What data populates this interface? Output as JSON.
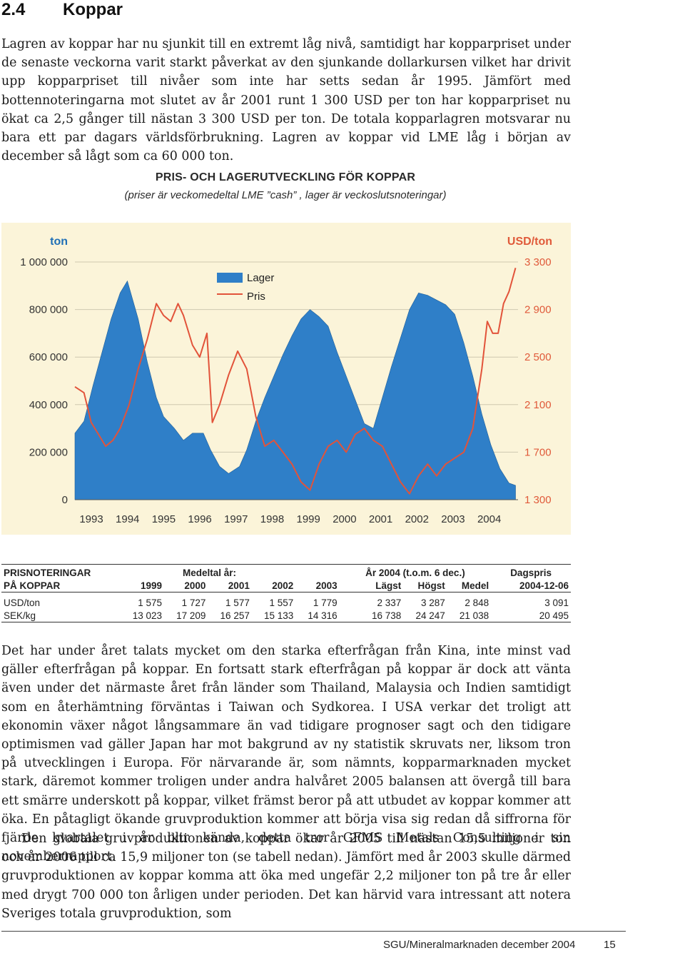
{
  "section": {
    "number": "2.4",
    "title": "Koppar"
  },
  "intro": "Lagren av koppar har nu sjunkit till en extremt låg nivå, samtidigt har kopparpriset under de senaste veckorna varit starkt påverkat av den sjunkande dollarkursen vilket har drivit upp kopparpriset till nivåer som inte har setts sedan år 1995. Jämfört med bottennoteringarna mot slutet av år 2001 runt 1 300 USD per ton har kopparpriset nu ökat ca 2,5 gånger till nästan 3 300 USD per ton. De totala kopparlagren motsvarar nu bara ett par dagars världsförbrukning. Lagren av koppar vid LME låg i början av december så lågt som ca 60 000 ton.",
  "chart_data": {
    "type": "area",
    "title": "PRIS- OCH LAGERUTVECKLING FÖR KOPPAR",
    "subtitle": "(priser är veckomedeltal LME ”cash” , lager är veckoslutsnoteringar)",
    "left_unit": "ton",
    "right_unit": "USD/ton",
    "left_ticks": [
      {
        "v": 1000000,
        "label": "1 000 000"
      },
      {
        "v": 800000,
        "label": "800 000"
      },
      {
        "v": 600000,
        "label": "600 000"
      },
      {
        "v": 400000,
        "label": "400 000"
      },
      {
        "v": 200000,
        "label": "200 000"
      },
      {
        "v": 0,
        "label": "0"
      }
    ],
    "right_ticks": [
      {
        "v": 3300,
        "label": "3 300"
      },
      {
        "v": 2900,
        "label": "2 900"
      },
      {
        "v": 2500,
        "label": "2 500"
      },
      {
        "v": 2100,
        "label": "2 100"
      },
      {
        "v": 1700,
        "label": "1 700"
      },
      {
        "v": 1300,
        "label": "1 300"
      }
    ],
    "left_range": [
      0,
      1000000
    ],
    "right_range": [
      1300,
      3300
    ],
    "x_range": [
      1992.75,
      2005.0
    ],
    "x_ticks": [
      "1993",
      "1994",
      "1995",
      "1996",
      "1997",
      "1998",
      "1999",
      "2000",
      "2001",
      "2002",
      "2003",
      "2004"
    ],
    "legend_position": "top-center",
    "series": [
      {
        "name": "Lager",
        "kind": "area",
        "color": "#2f7fc8",
        "x": [
          1992.75,
          1993.0,
          1993.25,
          1993.5,
          1993.75,
          1994.0,
          1994.2,
          1994.5,
          1994.75,
          1995.0,
          1995.2,
          1995.5,
          1995.75,
          1996.0,
          1996.3,
          1996.5,
          1996.75,
          1997.0,
          1997.3,
          1997.5,
          1997.75,
          1998.0,
          1998.25,
          1998.5,
          1998.75,
          1999.0,
          1999.25,
          1999.5,
          1999.75,
          2000.0,
          2000.25,
          2000.5,
          2000.75,
          2001.0,
          2001.25,
          2001.5,
          2001.75,
          2002.0,
          2002.25,
          2002.5,
          2002.75,
          2003.0,
          2003.25,
          2003.5,
          2003.75,
          2004.0,
          2004.25,
          2004.5,
          2004.75,
          2004.93
        ],
        "values": [
          280000,
          330000,
          480000,
          620000,
          760000,
          870000,
          920000,
          760000,
          580000,
          430000,
          350000,
          300000,
          250000,
          280000,
          280000,
          210000,
          140000,
          110000,
          140000,
          210000,
          330000,
          430000,
          520000,
          610000,
          690000,
          760000,
          800000,
          770000,
          730000,
          620000,
          520000,
          420000,
          320000,
          300000,
          430000,
          560000,
          680000,
          800000,
          870000,
          860000,
          840000,
          820000,
          780000,
          660000,
          520000,
          360000,
          230000,
          130000,
          70000,
          60000
        ]
      },
      {
        "name": "Pris",
        "kind": "line",
        "color": "#e2533a",
        "x": [
          1992.75,
          1993.0,
          1993.2,
          1993.4,
          1993.6,
          1993.8,
          1994.0,
          1994.25,
          1994.5,
          1994.75,
          1995.0,
          1995.2,
          1995.4,
          1995.6,
          1995.75,
          1996.0,
          1996.2,
          1996.4,
          1996.55,
          1996.75,
          1997.0,
          1997.25,
          1997.5,
          1997.75,
          1998.0,
          1998.25,
          1998.5,
          1998.75,
          1999.0,
          1999.25,
          1999.5,
          1999.75,
          2000.0,
          2000.25,
          2000.5,
          2000.75,
          2001.0,
          2001.25,
          2001.5,
          2001.75,
          2002.0,
          2002.25,
          2002.5,
          2002.75,
          2003.0,
          2003.25,
          2003.5,
          2003.75,
          2004.0,
          2004.15,
          2004.3,
          2004.45,
          2004.6,
          2004.75,
          2004.93
        ],
        "values": [
          2250,
          2200,
          1950,
          1850,
          1750,
          1800,
          1900,
          2100,
          2400,
          2650,
          2950,
          2850,
          2800,
          2950,
          2850,
          2600,
          2500,
          2700,
          1950,
          2100,
          2350,
          2550,
          2400,
          2000,
          1750,
          1800,
          1700,
          1600,
          1450,
          1380,
          1600,
          1750,
          1800,
          1700,
          1850,
          1900,
          1800,
          1750,
          1600,
          1450,
          1350,
          1500,
          1600,
          1500,
          1600,
          1650,
          1700,
          1900,
          2400,
          2800,
          2700,
          2700,
          2950,
          3050,
          3250
        ]
      }
    ]
  },
  "price_table": {
    "header_left_1": "PRISNOTERINGAR",
    "header_left_2": "PÅ KOPPAR",
    "group_avg": "Medeltal år:",
    "group_2004": "År 2004 (t.o.m. 6 dec.)",
    "group_day": "Dagspris",
    "cols": [
      "1999",
      "2000",
      "2001",
      "2002",
      "2003",
      "Lägst",
      "Högst",
      "Medel",
      "2004-12-06"
    ],
    "rows": [
      {
        "label": "USD/ton",
        "values": [
          "1 575",
          "1 727",
          "1 577",
          "1 557",
          "1 779",
          "2 337",
          "3 287",
          "2 848",
          "3 091"
        ]
      },
      {
        "label": "SEK/kg",
        "values": [
          "13 023",
          "17 209",
          "16 257",
          "15 133",
          "14 316",
          "16 738",
          "24 247",
          "21 038",
          "20 495"
        ]
      }
    ]
  },
  "body_1": "Det har under året talats mycket om den starka efterfrågan från Kina, inte minst vad gäller efterfrågan på koppar. En fortsatt stark efterfrågan på koppar är dock att vänta även under det närmaste året från länder som Thailand, Malaysia och Indien samtidigt som en återhämtning förväntas i Taiwan och Sydkorea. I USA verkar det troligt att ekonomin växer något långsammare än vad tidigare prognoser sagt och den tidigare optimismen vad gäller Japan har mot bakgrund av ny statistik skruvats ner, liksom tron på utvecklingen i Europa. För närvarande är, som nämnts, kopparmarknaden mycket stark, däremot kommer troligen under andra halvåret 2005 balansen att övergå till bara ett smärre underskott på koppar, vilket främst beror på att utbudet av koppar kommer att öka. En påtagligt ökande gruvproduktion kommer att börja visa sig redan då siffrorna för fjärde kvartalet i år blir kända, detta tror GFMS Metals Consulting i sin novemberrapport.",
  "body_2": "Den globala gruvproduktionen av koppar ökar år 2005 till nästan 15,5 miljoner ton och år 2006 till ca 15,9 miljoner ton (se tabell nedan). Jämfört med år 2003 skulle därmed gruvproduktionen av koppar komma att öka med ungefär 2,2 miljoner ton på tre år eller med drygt 700 000 ton årligen under perioden. Det kan härvid vara intressant att notera Sveriges totala gruvproduktion, som",
  "footer": {
    "source": "SGU/Mineralmarknaden december 2004",
    "page": "15"
  }
}
